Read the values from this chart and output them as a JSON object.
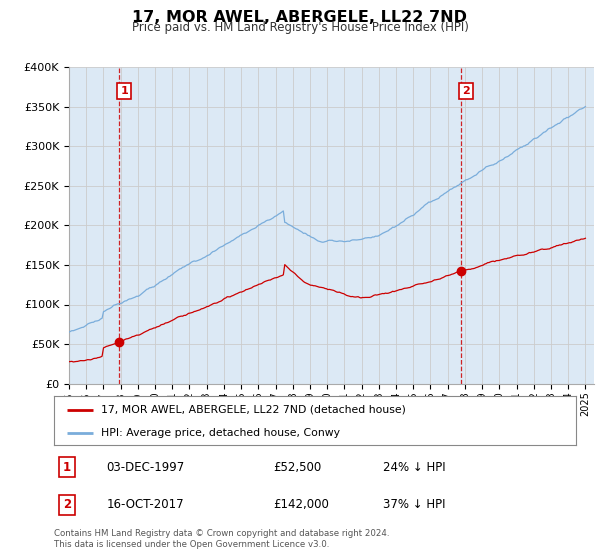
{
  "title": "17, MOR AWEL, ABERGELE, LL22 7ND",
  "subtitle": "Price paid vs. HM Land Registry's House Price Index (HPI)",
  "legend_line1": "17, MOR AWEL, ABERGELE, LL22 7ND (detached house)",
  "legend_line2": "HPI: Average price, detached house, Conwy",
  "annotation1_date": "03-DEC-1997",
  "annotation1_price": "£52,500",
  "annotation1_hpi": "24% ↓ HPI",
  "annotation2_date": "16-OCT-2017",
  "annotation2_price": "£142,000",
  "annotation2_hpi": "37% ↓ HPI",
  "footer": "Contains HM Land Registry data © Crown copyright and database right 2024.\nThis data is licensed under the Open Government Licence v3.0.",
  "red_line_color": "#cc0000",
  "blue_line_color": "#7aaddb",
  "grid_color": "#cccccc",
  "dashed_line_color": "#cc0000",
  "background_color": "#ffffff",
  "plot_bg_color": "#dce9f5",
  "ylim": [
    0,
    400000
  ],
  "yticks": [
    0,
    50000,
    100000,
    150000,
    200000,
    250000,
    300000,
    350000,
    400000
  ],
  "ytick_labels": [
    "£0",
    "£50K",
    "£100K",
    "£150K",
    "£200K",
    "£250K",
    "£300K",
    "£350K",
    "£400K"
  ],
  "sale1_x": 1997.92,
  "sale1_y": 52500,
  "sale2_x": 2017.79,
  "sale2_y": 142000,
  "xlim_start": 1995.0,
  "xlim_end": 2025.5
}
